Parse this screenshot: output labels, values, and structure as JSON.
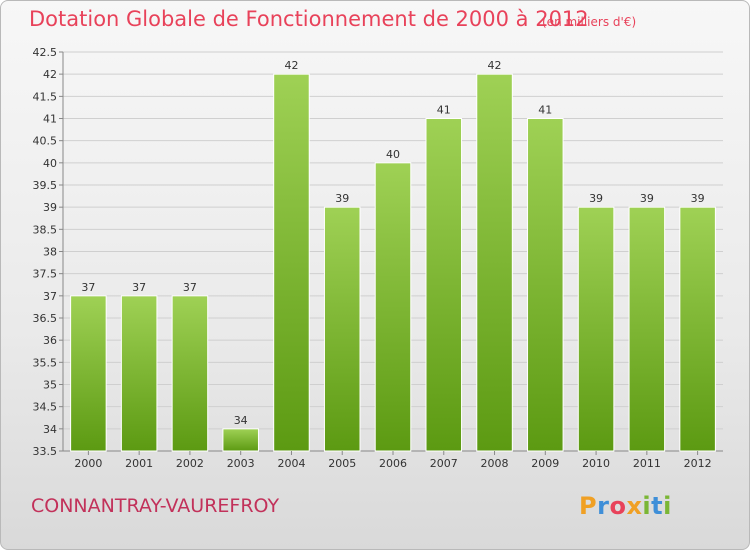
{
  "header": {
    "title": "Dotation Globale de Fonctionnement de 2000 à 2012",
    "unit_note": "(en milliers d'€)"
  },
  "footer": {
    "commune": "CONNANTRAY-VAUREFROY",
    "logo_letters": [
      "P",
      "r",
      "o",
      "x",
      "i",
      "t",
      "i"
    ],
    "logo_colors": [
      "#f0a024",
      "#3f8fd8",
      "#e8425a",
      "#f0a024",
      "#7ab635",
      "#3f8fd8",
      "#7ab635"
    ]
  },
  "colors": {
    "title": "#e8425a",
    "bar_light": "#9fd155",
    "bar_dark": "#5c9a12",
    "grid": "#cfcfcf",
    "axis_text": "#333333"
  },
  "chart_data": {
    "type": "bar",
    "title": "Dotation Globale de Fonctionnement de 2000 à 2012",
    "subtitle": "(en milliers d'€)",
    "categories": [
      "2000",
      "2001",
      "2002",
      "2003",
      "2004",
      "2005",
      "2006",
      "2007",
      "2008",
      "2009",
      "2010",
      "2011",
      "2012"
    ],
    "values": [
      37,
      37,
      37,
      34,
      42,
      39,
      40,
      41,
      42,
      41,
      39,
      39,
      39
    ],
    "ylim": [
      33.5,
      42.5
    ],
    "yticks": [
      33.5,
      34,
      34.5,
      35,
      35.5,
      36,
      36.5,
      37,
      37.5,
      38,
      38.5,
      39,
      39.5,
      40,
      40.5,
      41,
      41.5,
      42,
      42.5
    ],
    "grid": true,
    "legend": "none"
  }
}
